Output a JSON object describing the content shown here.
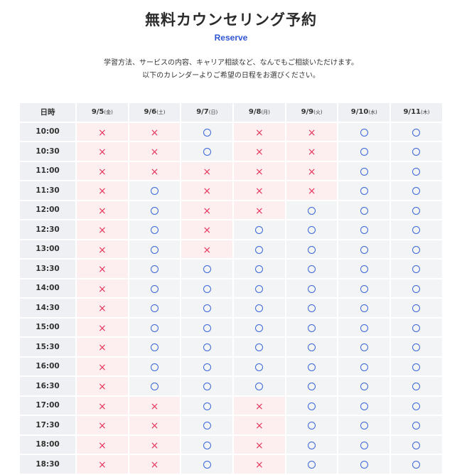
{
  "page": {
    "title": "無料カウンセリング予約",
    "subtitle": "Reserve",
    "intro_line1": "学習方法、サービスの内容、キャリア相談など、なんでもご相談いただけます。",
    "intro_line2": "以下のカレンダーよりご希望の日程をお選びください。"
  },
  "table": {
    "corner_label": "日時",
    "days": [
      {
        "date": "9/5",
        "dow": "(金)"
      },
      {
        "date": "9/6",
        "dow": "(土)"
      },
      {
        "date": "9/7",
        "dow": "(日)"
      },
      {
        "date": "9/8",
        "dow": "(月)"
      },
      {
        "date": "9/9",
        "dow": "(火)"
      },
      {
        "date": "9/10",
        "dow": "(水)"
      },
      {
        "date": "9/11",
        "dow": "(木)"
      }
    ],
    "rows": [
      {
        "time": "10:00",
        "slots": [
          "x",
          "x",
          "o",
          "x",
          "x",
          "o",
          "o"
        ]
      },
      {
        "time": "10:30",
        "slots": [
          "x",
          "x",
          "o",
          "x",
          "x",
          "o",
          "o"
        ]
      },
      {
        "time": "11:00",
        "slots": [
          "x",
          "x",
          "x",
          "x",
          "x",
          "o",
          "o"
        ]
      },
      {
        "time": "11:30",
        "slots": [
          "x",
          "o",
          "x",
          "x",
          "x",
          "o",
          "o"
        ]
      },
      {
        "time": "12:00",
        "slots": [
          "x",
          "o",
          "x",
          "x",
          "o",
          "o",
          "o"
        ]
      },
      {
        "time": "12:30",
        "slots": [
          "x",
          "o",
          "x",
          "o",
          "o",
          "o",
          "o"
        ]
      },
      {
        "time": "13:00",
        "slots": [
          "x",
          "o",
          "x",
          "o",
          "o",
          "o",
          "o"
        ]
      },
      {
        "time": "13:30",
        "slots": [
          "x",
          "o",
          "o",
          "o",
          "o",
          "o",
          "o"
        ]
      },
      {
        "time": "14:00",
        "slots": [
          "x",
          "o",
          "o",
          "o",
          "o",
          "o",
          "o"
        ]
      },
      {
        "time": "14:30",
        "slots": [
          "x",
          "o",
          "o",
          "o",
          "o",
          "o",
          "o"
        ]
      },
      {
        "time": "15:00",
        "slots": [
          "x",
          "o",
          "o",
          "o",
          "o",
          "o",
          "o"
        ]
      },
      {
        "time": "15:30",
        "slots": [
          "x",
          "o",
          "o",
          "o",
          "o",
          "o",
          "o"
        ]
      },
      {
        "time": "16:00",
        "slots": [
          "x",
          "o",
          "o",
          "o",
          "o",
          "o",
          "o"
        ]
      },
      {
        "time": "16:30",
        "slots": [
          "x",
          "o",
          "o",
          "o",
          "o",
          "o",
          "o"
        ]
      },
      {
        "time": "17:00",
        "slots": [
          "x",
          "x",
          "o",
          "x",
          "o",
          "o",
          "o"
        ]
      },
      {
        "time": "17:30",
        "slots": [
          "x",
          "x",
          "o",
          "x",
          "o",
          "o",
          "o"
        ]
      },
      {
        "time": "18:00",
        "slots": [
          "x",
          "x",
          "o",
          "x",
          "o",
          "o",
          "o"
        ]
      },
      {
        "time": "18:30",
        "slots": [
          "x",
          "x",
          "o",
          "x",
          "o",
          "o",
          "o"
        ]
      }
    ]
  },
  "symbols": {
    "unavailable": "×",
    "available": "○"
  },
  "colors": {
    "accent_blue": "#2f55d4",
    "unavailable_red": "#e8345a",
    "unavailable_bg": "#fdeef0",
    "available_bg": "#f3f4f6",
    "header_bg": "#eef0f3"
  }
}
